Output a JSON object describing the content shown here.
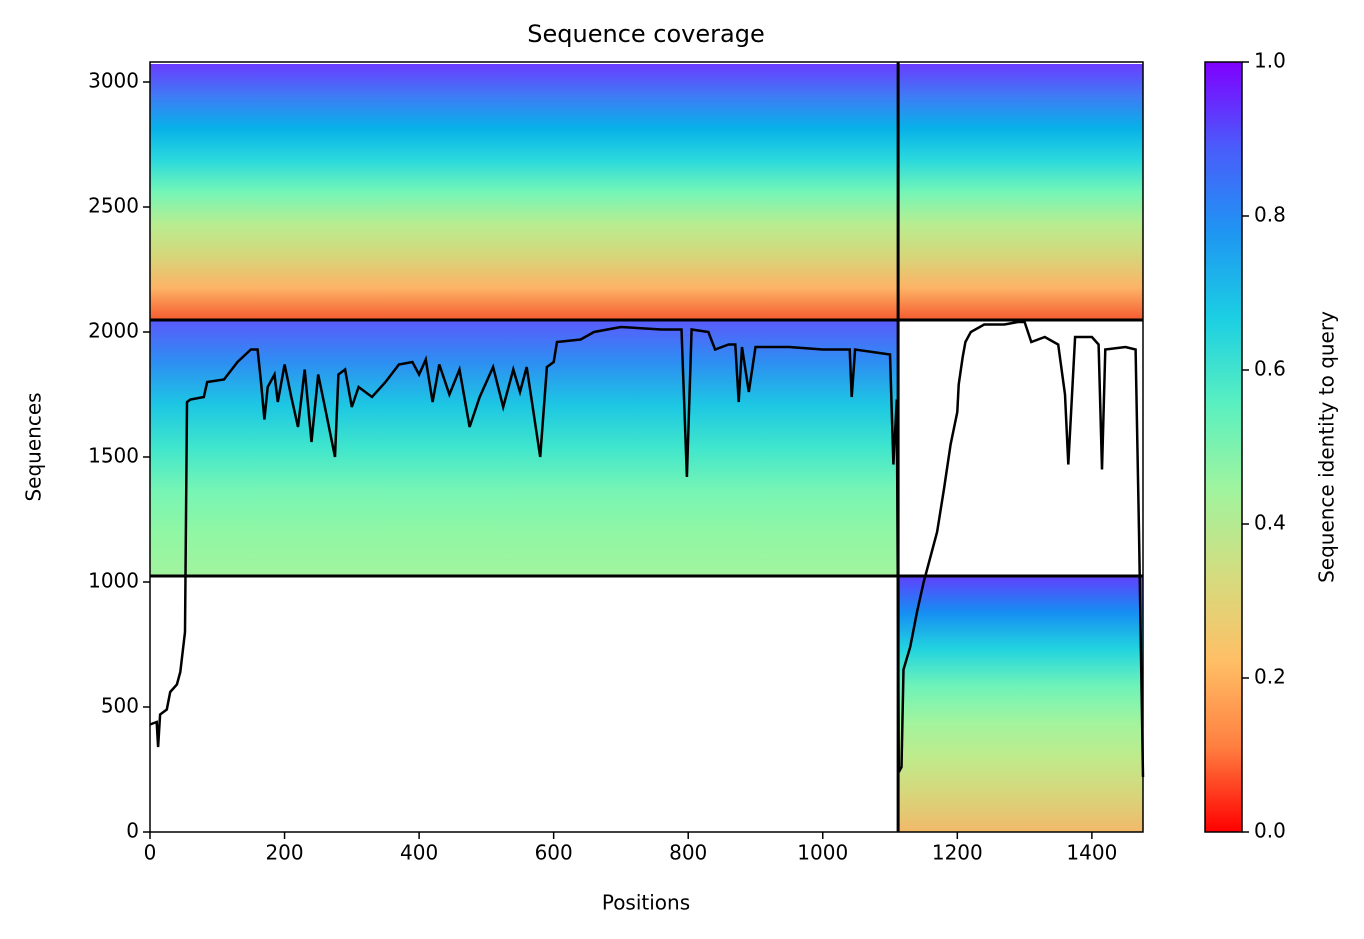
{
  "chart_data": {
    "type": "line",
    "title": "Sequence coverage",
    "xlabel": "Positions",
    "ylabel": "Sequences",
    "xlim": [
      0,
      1476
    ],
    "ylim": [
      0,
      3080
    ],
    "xticks": [
      0,
      200,
      400,
      600,
      800,
      1000,
      1200,
      1400
    ],
    "yticks": [
      0,
      500,
      1000,
      1500,
      2000,
      2500,
      3000
    ],
    "regions": [
      {
        "x": [
          0,
          1112
        ],
        "y": [
          2048,
          3072
        ],
        "colors": [
          "#f55a2f",
          "#fdb366",
          "#d6d67a",
          "#b8ed91",
          "#74f6b7",
          "#2ad9dd",
          "#07b1e9",
          "#3f7bf5",
          "#6a3cff"
        ]
      },
      {
        "x": [
          1112,
          1476
        ],
        "y": [
          2048,
          3072
        ],
        "colors": [
          "#f55a2f",
          "#fdb366",
          "#d6d67a",
          "#b8ed91",
          "#74f6b7",
          "#2ad9dd",
          "#07b1e9",
          "#3f7bf5",
          "#6a3cff"
        ]
      },
      {
        "x": [
          0,
          1112
        ],
        "y": [
          1024,
          2048
        ],
        "colors": [
          "#a2f49e",
          "#90f7a4",
          "#77f5b5",
          "#40e6cc",
          "#1dc7e3",
          "#2d8ff2",
          "#5a5afc"
        ]
      },
      {
        "x": [
          1112,
          1476
        ],
        "y": [
          0,
          1024
        ],
        "colors": [
          "#f1b96a",
          "#d8d57a",
          "#c0ea8b",
          "#a2f49e",
          "#6ef3b9",
          "#22d4df",
          "#168ef3",
          "#6040fd"
        ]
      }
    ],
    "dividers": {
      "x": [
        1112
      ],
      "y": [
        1024,
        2048
      ]
    },
    "line": {
      "color": "#000000",
      "x": [
        0,
        10,
        12,
        15,
        25,
        30,
        40,
        45,
        52,
        55,
        60,
        80,
        85,
        110,
        130,
        150,
        160,
        165,
        170,
        175,
        185,
        190,
        200,
        210,
        220,
        230,
        240,
        250,
        260,
        275,
        280,
        290,
        300,
        310,
        330,
        350,
        370,
        390,
        400,
        410,
        420,
        430,
        445,
        460,
        475,
        490,
        510,
        525,
        540,
        550,
        560,
        580,
        590,
        600,
        605,
        640,
        660,
        700,
        760,
        790,
        798,
        805,
        830,
        840,
        860,
        870,
        875,
        880,
        890,
        900,
        950,
        1000,
        1040,
        1043,
        1048,
        1100,
        1105,
        1110,
        1113,
        1117,
        1120,
        1130,
        1140,
        1150,
        1160,
        1170,
        1180,
        1190,
        1200,
        1202,
        1208,
        1212,
        1220,
        1240,
        1270,
        1290,
        1300,
        1310,
        1330,
        1350,
        1360,
        1365,
        1375,
        1400,
        1410,
        1415,
        1420,
        1450,
        1465,
        1470,
        1476
      ],
      "values": [
        430,
        440,
        340,
        470,
        490,
        560,
        590,
        640,
        800,
        1720,
        1730,
        1740,
        1800,
        1810,
        1880,
        1930,
        1930,
        1800,
        1650,
        1780,
        1830,
        1720,
        1870,
        1740,
        1620,
        1850,
        1560,
        1830,
        1700,
        1500,
        1830,
        1850,
        1700,
        1780,
        1740,
        1800,
        1870,
        1880,
        1830,
        1890,
        1720,
        1870,
        1750,
        1850,
        1620,
        1740,
        1860,
        1700,
        1850,
        1760,
        1860,
        1500,
        1860,
        1880,
        1960,
        1970,
        2000,
        2020,
        2010,
        2010,
        1420,
        2010,
        2000,
        1930,
        1950,
        1950,
        1720,
        1940,
        1760,
        1940,
        1940,
        1930,
        1930,
        1740,
        1930,
        1910,
        1470,
        1730,
        240,
        260,
        650,
        740,
        880,
        1000,
        1100,
        1200,
        1370,
        1550,
        1680,
        1790,
        1900,
        1960,
        2000,
        2030,
        2030,
        2040,
        2040,
        1960,
        1980,
        1950,
        1750,
        1470,
        1980,
        1980,
        1950,
        1450,
        1930,
        1940,
        1930,
        1200,
        220
      ]
    },
    "colorbar": {
      "label": "Sequence identity to query",
      "clim": [
        0,
        1
      ],
      "ticks": [
        0.0,
        0.2,
        0.4,
        0.6,
        0.8,
        1.0
      ],
      "tick_labels": [
        "0.0",
        "0.2",
        "0.4",
        "0.6",
        "0.8",
        "1.0"
      ],
      "colormap": [
        "#ff0000",
        "#ff7f40",
        "#ffbf66",
        "#d4dc7f",
        "#a0f49e",
        "#5af0c0",
        "#1ccfe3",
        "#1e96f2",
        "#4a5cfb",
        "#8000ff"
      ]
    }
  }
}
